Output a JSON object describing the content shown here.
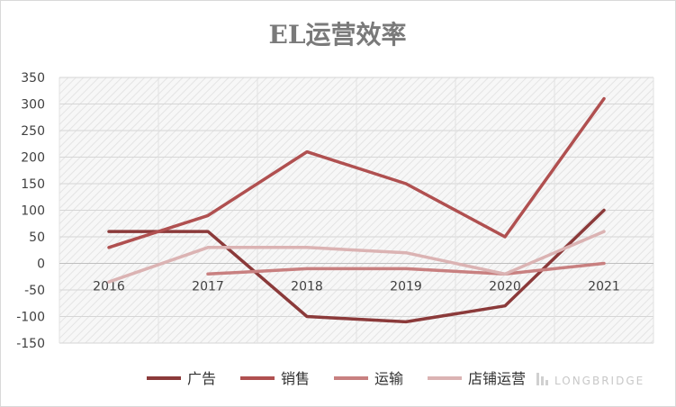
{
  "chart_data": {
    "type": "line",
    "title": "EL运营效率",
    "xlabel": "",
    "ylabel": "",
    "categories": [
      "2016",
      "2017",
      "2018",
      "2019",
      "2020",
      "2021"
    ],
    "ylim": [
      -150,
      350
    ],
    "yticks": [
      350,
      300,
      250,
      200,
      150,
      100,
      50,
      0,
      -50,
      -100,
      -150
    ],
    "grid": true,
    "legend_position": "bottom",
    "series": [
      {
        "name": "广告",
        "color": "#8b3a3a",
        "values": [
          60,
          60,
          -100,
          -110,
          -80,
          100
        ]
      },
      {
        "name": "销售",
        "color": "#b05050",
        "values": [
          30,
          90,
          210,
          150,
          50,
          310
        ]
      },
      {
        "name": "运输",
        "color": "#c88080",
        "values": [
          null,
          -20,
          -10,
          -10,
          -20,
          0
        ]
      },
      {
        "name": "店铺运营",
        "color": "#dbb3b3",
        "values": [
          -35,
          30,
          30,
          20,
          -20,
          60
        ]
      }
    ]
  },
  "watermark": {
    "text": "LONGBRIDGE",
    "icon": "longbridge-logo-icon"
  }
}
